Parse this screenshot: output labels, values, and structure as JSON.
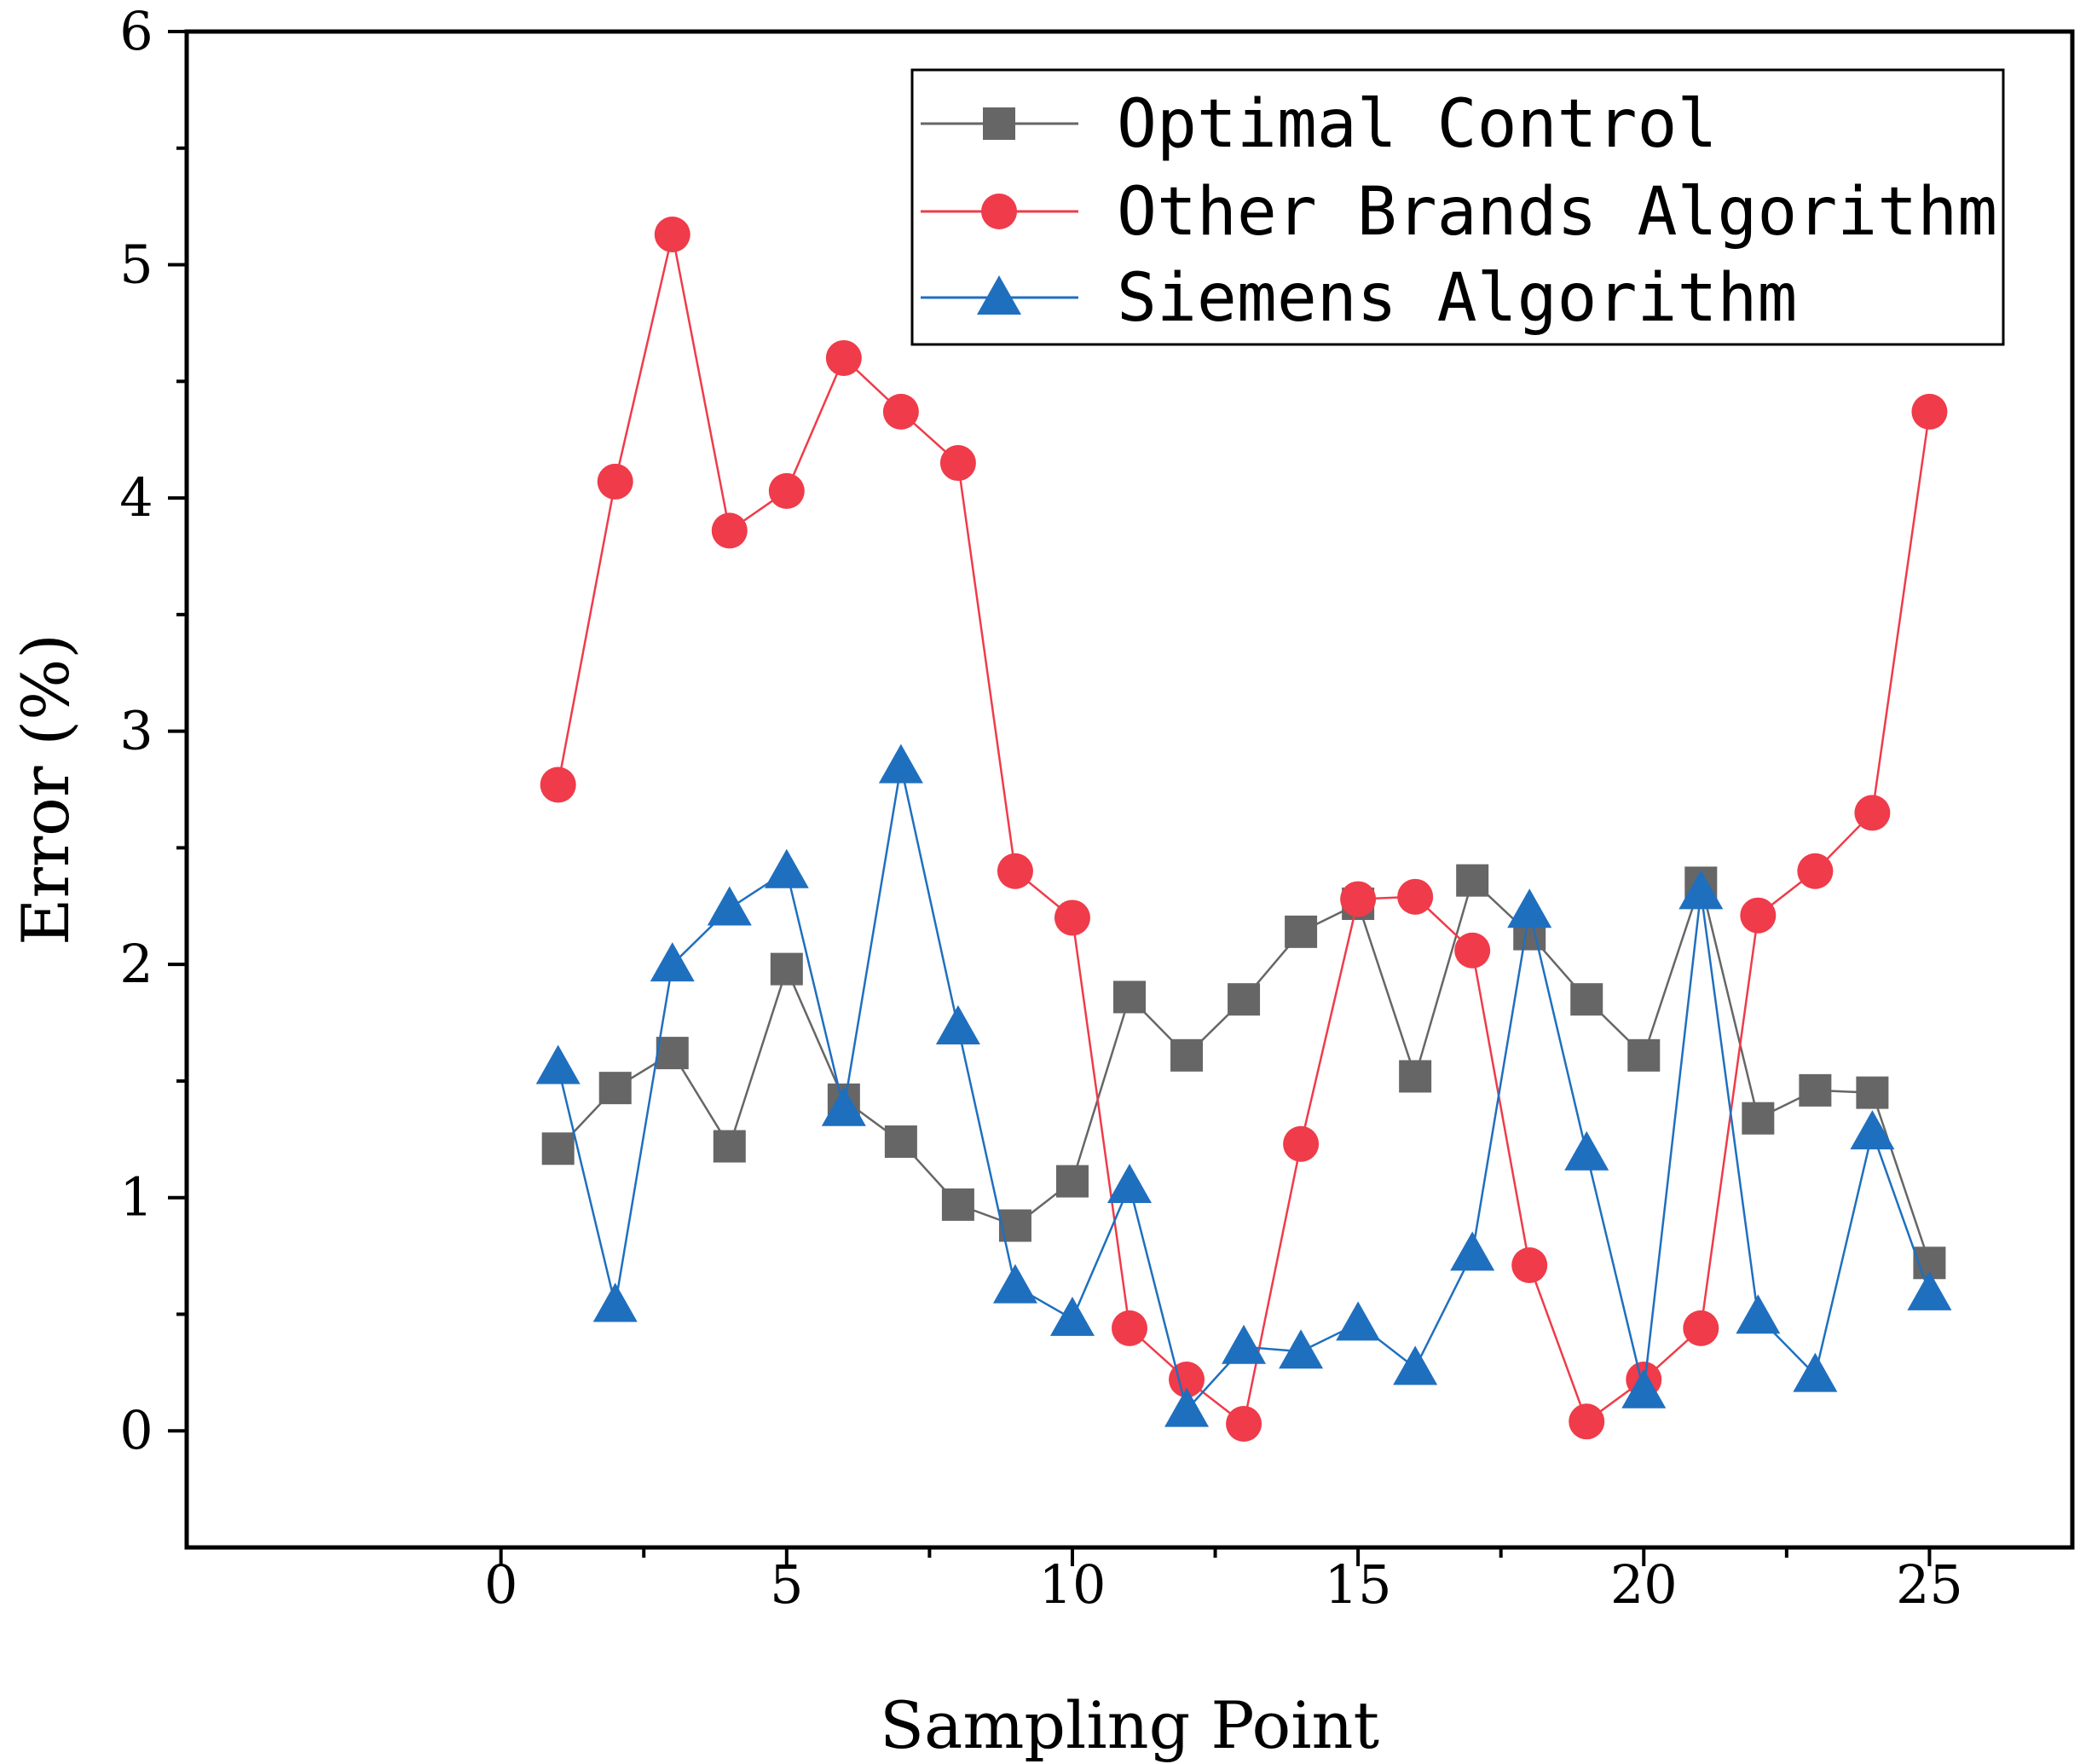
{
  "chart_data": {
    "type": "line",
    "title": "",
    "xlabel": "Sampling Point",
    "ylabel": "Error (%)",
    "xlim": [
      -5.5,
      27.5
    ],
    "ylim": [
      -0.5,
      6
    ],
    "xticks": [
      0,
      5,
      10,
      15,
      20,
      25
    ],
    "xtick_labels": [
      "0",
      "5",
      "10",
      "15",
      "20",
      "25"
    ],
    "yticks": [
      0,
      1,
      2,
      3,
      4,
      5,
      6
    ],
    "ytick_labels": [
      "0",
      "1",
      "2",
      "3",
      "4",
      "5",
      "6"
    ],
    "legend_position": "top-right",
    "x": [
      1,
      2,
      3,
      4,
      5,
      6,
      7,
      8,
      9,
      10,
      11,
      12,
      13,
      14,
      15,
      16,
      17,
      18,
      19,
      20,
      21,
      22,
      23,
      24,
      25
    ],
    "series": [
      {
        "name": "Optimal Control",
        "color": "#666666",
        "marker": "square",
        "values": [
          1.21,
          1.47,
          1.62,
          1.22,
          1.98,
          1.42,
          1.24,
          0.97,
          0.88,
          1.07,
          1.86,
          1.61,
          1.85,
          2.14,
          2.26,
          1.52,
          2.36,
          2.13,
          1.85,
          1.61,
          2.35,
          1.34,
          1.46,
          1.45,
          0.72
        ]
      },
      {
        "name": "Other Brands Algorithm",
        "color": "#ef3b4a",
        "marker": "circle",
        "values": [
          2.77,
          4.07,
          5.13,
          3.86,
          4.03,
          4.6,
          4.37,
          4.15,
          2.4,
          2.2,
          0.44,
          0.22,
          0.03,
          1.23,
          2.28,
          2.29,
          2.06,
          0.71,
          0.04,
          0.22,
          0.44,
          2.21,
          2.4,
          2.65,
          4.37
        ]
      },
      {
        "name": "Siemens Algorithm",
        "color": "#1f6fbf",
        "marker": "triangle",
        "values": [
          1.56,
          0.54,
          2.0,
          2.24,
          2.4,
          1.38,
          2.85,
          1.73,
          0.62,
          0.48,
          1.05,
          0.09,
          0.36,
          0.34,
          0.46,
          0.27,
          0.76,
          2.23,
          1.19,
          0.17,
          2.31,
          0.49,
          0.24,
          1.28,
          0.59
        ]
      }
    ]
  }
}
